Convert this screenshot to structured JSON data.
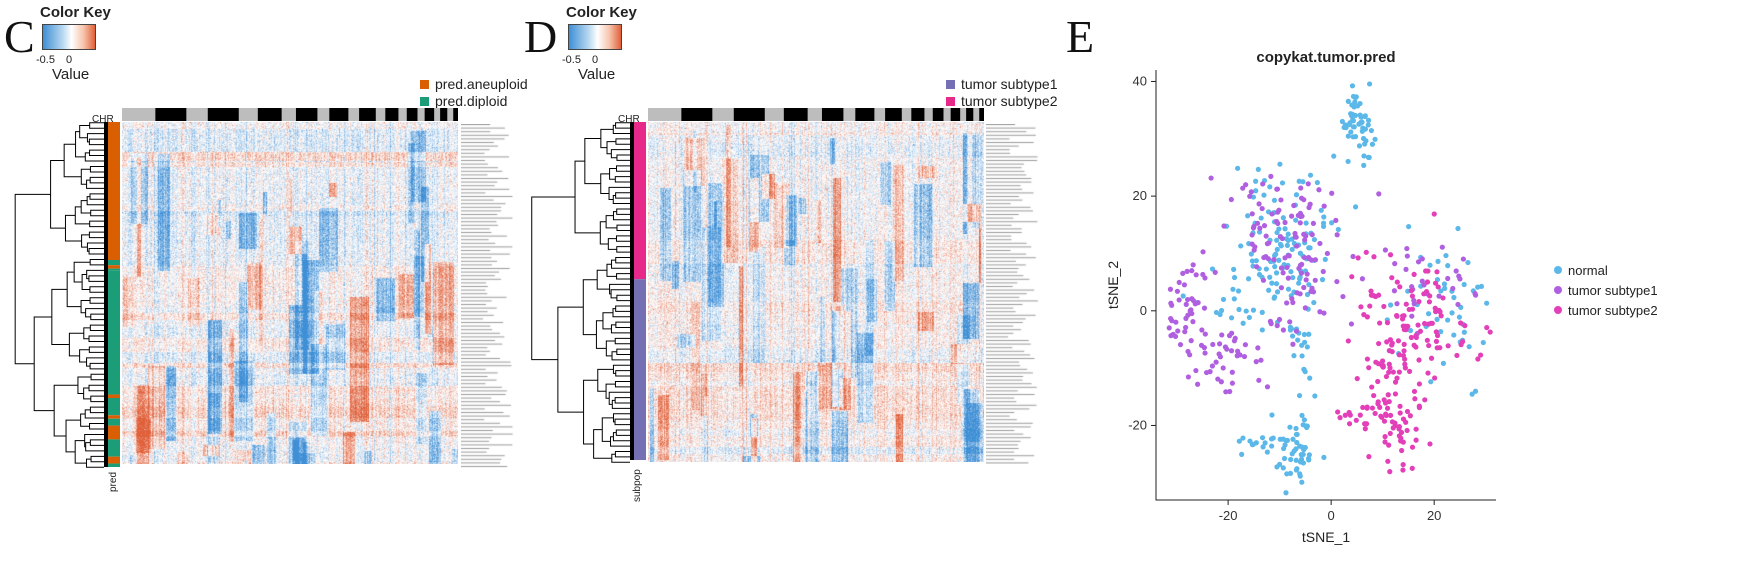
{
  "panels": {
    "C": {
      "letter": "C",
      "color_key": {
        "title": "Color Key",
        "tick_left": "-0.5",
        "tick_mid": "0",
        "value_label": "Value"
      },
      "legend": [
        {
          "label": "pred.aneuploid",
          "color": "#d95f02"
        },
        {
          "label": "pred.diploid",
          "color": "#1b9e77"
        }
      ],
      "chr_label": "CHR",
      "side_label": "pred"
    },
    "D": {
      "letter": "D",
      "color_key": {
        "title": "Color Key",
        "tick_left": "-0.5",
        "tick_mid": "0",
        "value_label": "Value"
      },
      "legend": [
        {
          "label": "tumor subtype1",
          "color": "#7570b3"
        },
        {
          "label": "tumor subtype2",
          "color": "#e7298a"
        }
      ],
      "chr_label": "CHR",
      "side_label": "subpop"
    },
    "E": {
      "letter": "E"
    }
  },
  "chart_data": [
    {
      "type": "heatmap",
      "panel": "C",
      "title": "",
      "color_scale": {
        "min_color": "#3f8fd6",
        "mid_color": "#ffffff",
        "max_color": "#e0603a",
        "ticks": [
          -0.5,
          0
        ]
      },
      "row_annotation": {
        "name": "pred",
        "categories": [
          "pred.aneuploid",
          "pred.diploid"
        ]
      },
      "column_annotation": {
        "name": "CHR",
        "alternating": [
          "#000000",
          "#bdbdbd"
        ]
      }
    },
    {
      "type": "heatmap",
      "panel": "D",
      "title": "",
      "color_scale": {
        "min_color": "#3f8fd6",
        "mid_color": "#ffffff",
        "max_color": "#e0603a",
        "ticks": [
          -0.5,
          0
        ]
      },
      "row_annotation": {
        "name": "subpop",
        "categories": [
          "tumor subtype1",
          "tumor subtype2"
        ]
      },
      "column_annotation": {
        "name": "CHR",
        "alternating": [
          "#000000",
          "#bdbdbd"
        ]
      }
    },
    {
      "type": "scatter",
      "panel": "E",
      "title": "copykat.tumor.pred",
      "xlabel": "tSNE_1",
      "ylabel": "tSNE_2",
      "xlim": [
        -34,
        32
      ],
      "ylim": [
        -33,
        42
      ],
      "xticks": [
        -20,
        0,
        20
      ],
      "yticks": [
        -20,
        0,
        20,
        40
      ],
      "grid": false,
      "legend_position": "right",
      "series": [
        {
          "name": "normal",
          "color": "#5bb8e8",
          "clusters": [
            {
              "cx": 5,
              "cy": 33,
              "sx": 1.5,
              "sy": 3.2,
              "n": 55
            },
            {
              "cx": -8,
              "cy": 13,
              "sx": 5,
              "sy": 6,
              "n": 90
            },
            {
              "cx": -15,
              "cy": 4,
              "sx": 5,
              "sy": 4,
              "n": 40
            },
            {
              "cx": -7,
              "cy": -24,
              "sx": 2,
              "sy": 4,
              "n": 55
            },
            {
              "cx": -14,
              "cy": -23,
              "sx": 2.5,
              "sy": 1.5,
              "n": 14
            },
            {
              "cx": -6,
              "cy": -6,
              "sx": 1.2,
              "sy": 4,
              "n": 18
            },
            {
              "cx": 22,
              "cy": 1,
              "sx": 5,
              "sy": 7,
              "n": 50
            }
          ]
        },
        {
          "name": "tumor subtype1",
          "color": "#b05fe0",
          "clusters": [
            {
              "cx": -10,
              "cy": 14,
              "sx": 6,
              "sy": 5,
              "n": 90
            },
            {
              "cx": -28,
              "cy": 0,
              "sx": 3,
              "sy": 4,
              "n": 45
            },
            {
              "cx": -20,
              "cy": -8,
              "sx": 3.5,
              "sy": 3,
              "n": 40
            },
            {
              "cx": -6,
              "cy": 3,
              "sx": 4,
              "sy": 4,
              "n": 30
            },
            {
              "cx": 18,
              "cy": 6,
              "sx": 5,
              "sy": 4,
              "n": 30
            }
          ]
        },
        {
          "name": "tumor subtype2",
          "color": "#e23fb9",
          "clusters": [
            {
              "cx": 16,
              "cy": -2,
              "sx": 6,
              "sy": 6,
              "n": 100
            },
            {
              "cx": 12,
              "cy": -19,
              "sx": 3,
              "sy": 5,
              "n": 70
            },
            {
              "cx": 5,
              "cy": -18,
              "sx": 1.8,
              "sy": 1.3,
              "n": 12
            },
            {
              "cx": 11,
              "cy": -7,
              "sx": 2.2,
              "sy": 2,
              "n": 14
            }
          ]
        }
      ]
    }
  ]
}
